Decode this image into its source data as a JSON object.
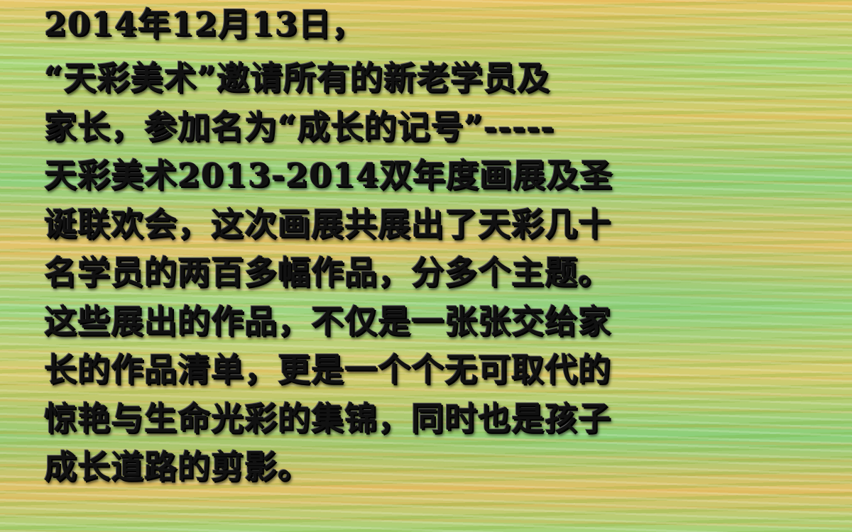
{
  "slide": {
    "date_line": "2014年12月13日，",
    "paragraph_lines": [
      "“天彩美术”邀请所有的新老学员及",
      "家长，参加名为“成长的记号”-----",
      "天彩美术2013-2014双年度画展及圣",
      "诞联欢会，这次画展共展出了天彩几十",
      "名学员的两百多幅作品，分多个主题。",
      "这些展出的作品，不仅是一张张交给家",
      "长的作品清单，更是一个个无可取代的",
      "惊艳与生命光彩的集锦，同时也是孩子",
      "成长道路的剪影。"
    ]
  },
  "colors": {
    "text": "#111111",
    "background_yellow": "#e0c168",
    "background_green": "#9cd582"
  }
}
